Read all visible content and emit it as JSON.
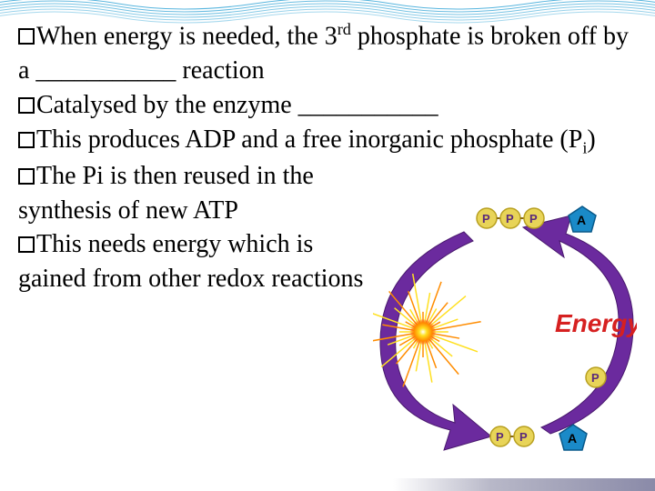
{
  "bullets": [
    {
      "pre": "When energy is needed, the 3",
      "sup": "rd",
      "post": " phosphate is broken off by a ___________ reaction"
    },
    {
      "pre": "Catalysed by the enzyme ___________",
      "sup": "",
      "post": ""
    },
    {
      "pre": "This produces ADP and a free inorganic phosphate (P",
      "sub": "i",
      "post": ")"
    },
    {
      "pre": "The Pi is then reused in the synthesis of new ATP",
      "sup": "",
      "post": ""
    },
    {
      "pre": "This needs energy which is gained from other redox reactions",
      "sup": "",
      "post": ""
    }
  ],
  "diagram": {
    "energy_label": "Energy",
    "top_adenosine": "A",
    "bottom_adenosine": "A",
    "free_phosphate": "P",
    "top_phosphates": [
      "P",
      "P",
      "P"
    ],
    "bottom_phosphates": [
      "P",
      "P"
    ],
    "colors": {
      "arrow_fill": "#6b2a9e",
      "arrow_stroke": "#4a1a6e",
      "pentagon_fill": "#1a8ac8",
      "pentagon_stroke": "#0a5a8a",
      "phosphate_fill": "#e8d458",
      "phosphate_stroke": "#b8a020",
      "energy_text": "#d62020",
      "burst_orange": "#ff8c00",
      "burst_yellow": "#ffe020"
    }
  },
  "wave": {
    "stroke": "#3aa8d8",
    "count": 6
  }
}
